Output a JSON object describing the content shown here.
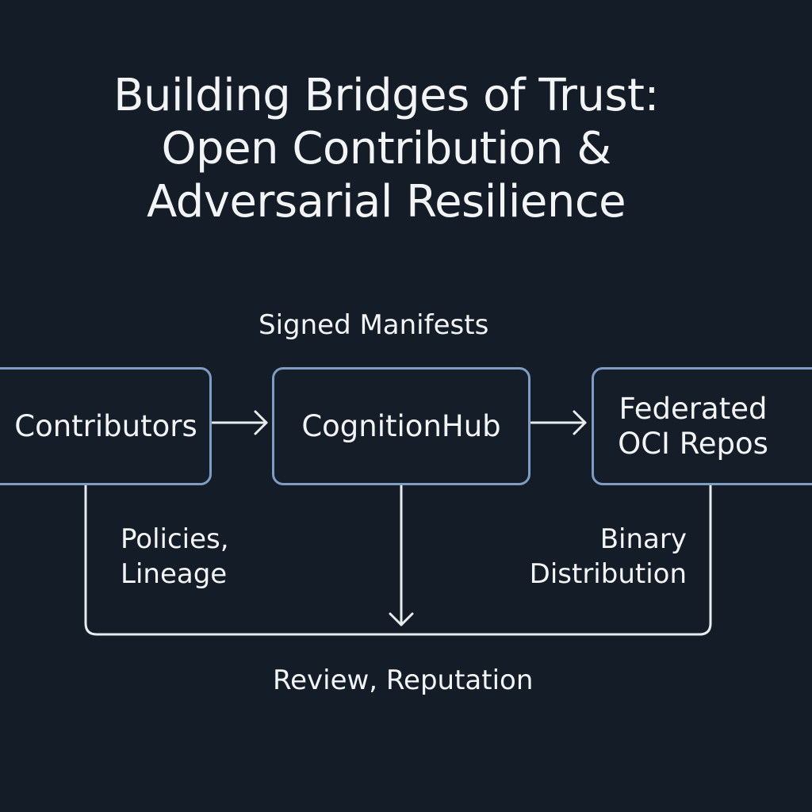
{
  "title": {
    "line1": "Building Bridges of Trust:",
    "line2": "Open Contribution &",
    "line3": "Adversarial Resilience"
  },
  "nodes": {
    "contributors": "Contributors",
    "hub": "CognitionHub",
    "repos_line1": "Federated",
    "repos_line2": "OCI Repos"
  },
  "edges": {
    "top_label": "Signed Manifests",
    "left_label_line1": "Policies,",
    "left_label_line2": "Lineage",
    "right_label_line1": "Binary",
    "right_label_line2": "Distribution",
    "bottom_label": "Review, Reputation"
  },
  "colors": {
    "background": "#141c27",
    "box_border": "#7f9dc2",
    "line": "#e9ecef",
    "text": "#f3f4f6"
  }
}
